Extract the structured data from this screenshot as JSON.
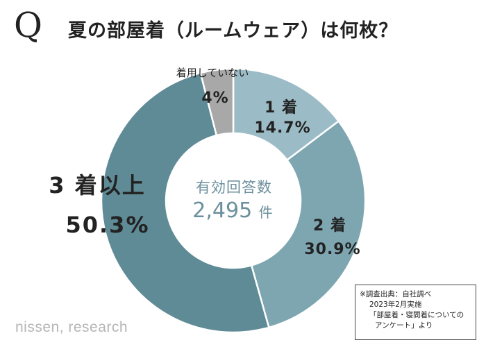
{
  "title": {
    "q_mark": "Q",
    "text": "夏の部屋着（ルームウェア）は何枚？"
  },
  "chart_data": {
    "type": "pie",
    "donut": true,
    "categories": [
      "1着",
      "2着",
      "3着以上",
      "着用していない"
    ],
    "values": [
      14.7,
      30.9,
      50.3,
      4
    ],
    "value_labels": [
      "14.7%",
      "30.9%",
      "50.3%",
      "4%"
    ],
    "colors": [
      "#9bbcc6",
      "#7ea6b1",
      "#5f8b97",
      "#a8a8a8"
    ]
  },
  "labels": {
    "one": {
      "name": "1 着",
      "pct": "14.7%"
    },
    "two": {
      "name": "2 着",
      "pct": "30.9%"
    },
    "three": {
      "name": "3 着以上",
      "pct": "50.3%"
    },
    "none": {
      "name": "着用していない",
      "pct": "4%"
    }
  },
  "center": {
    "label": "有効回答数",
    "count": "2,495",
    "unit": "件"
  },
  "source": {
    "line1": "※調査出典：自社調べ",
    "line2": "2023年2月実施",
    "line3": "「部屋着・寝間着についての",
    "line4": "アンケート」より"
  },
  "logo": "nissen, research"
}
